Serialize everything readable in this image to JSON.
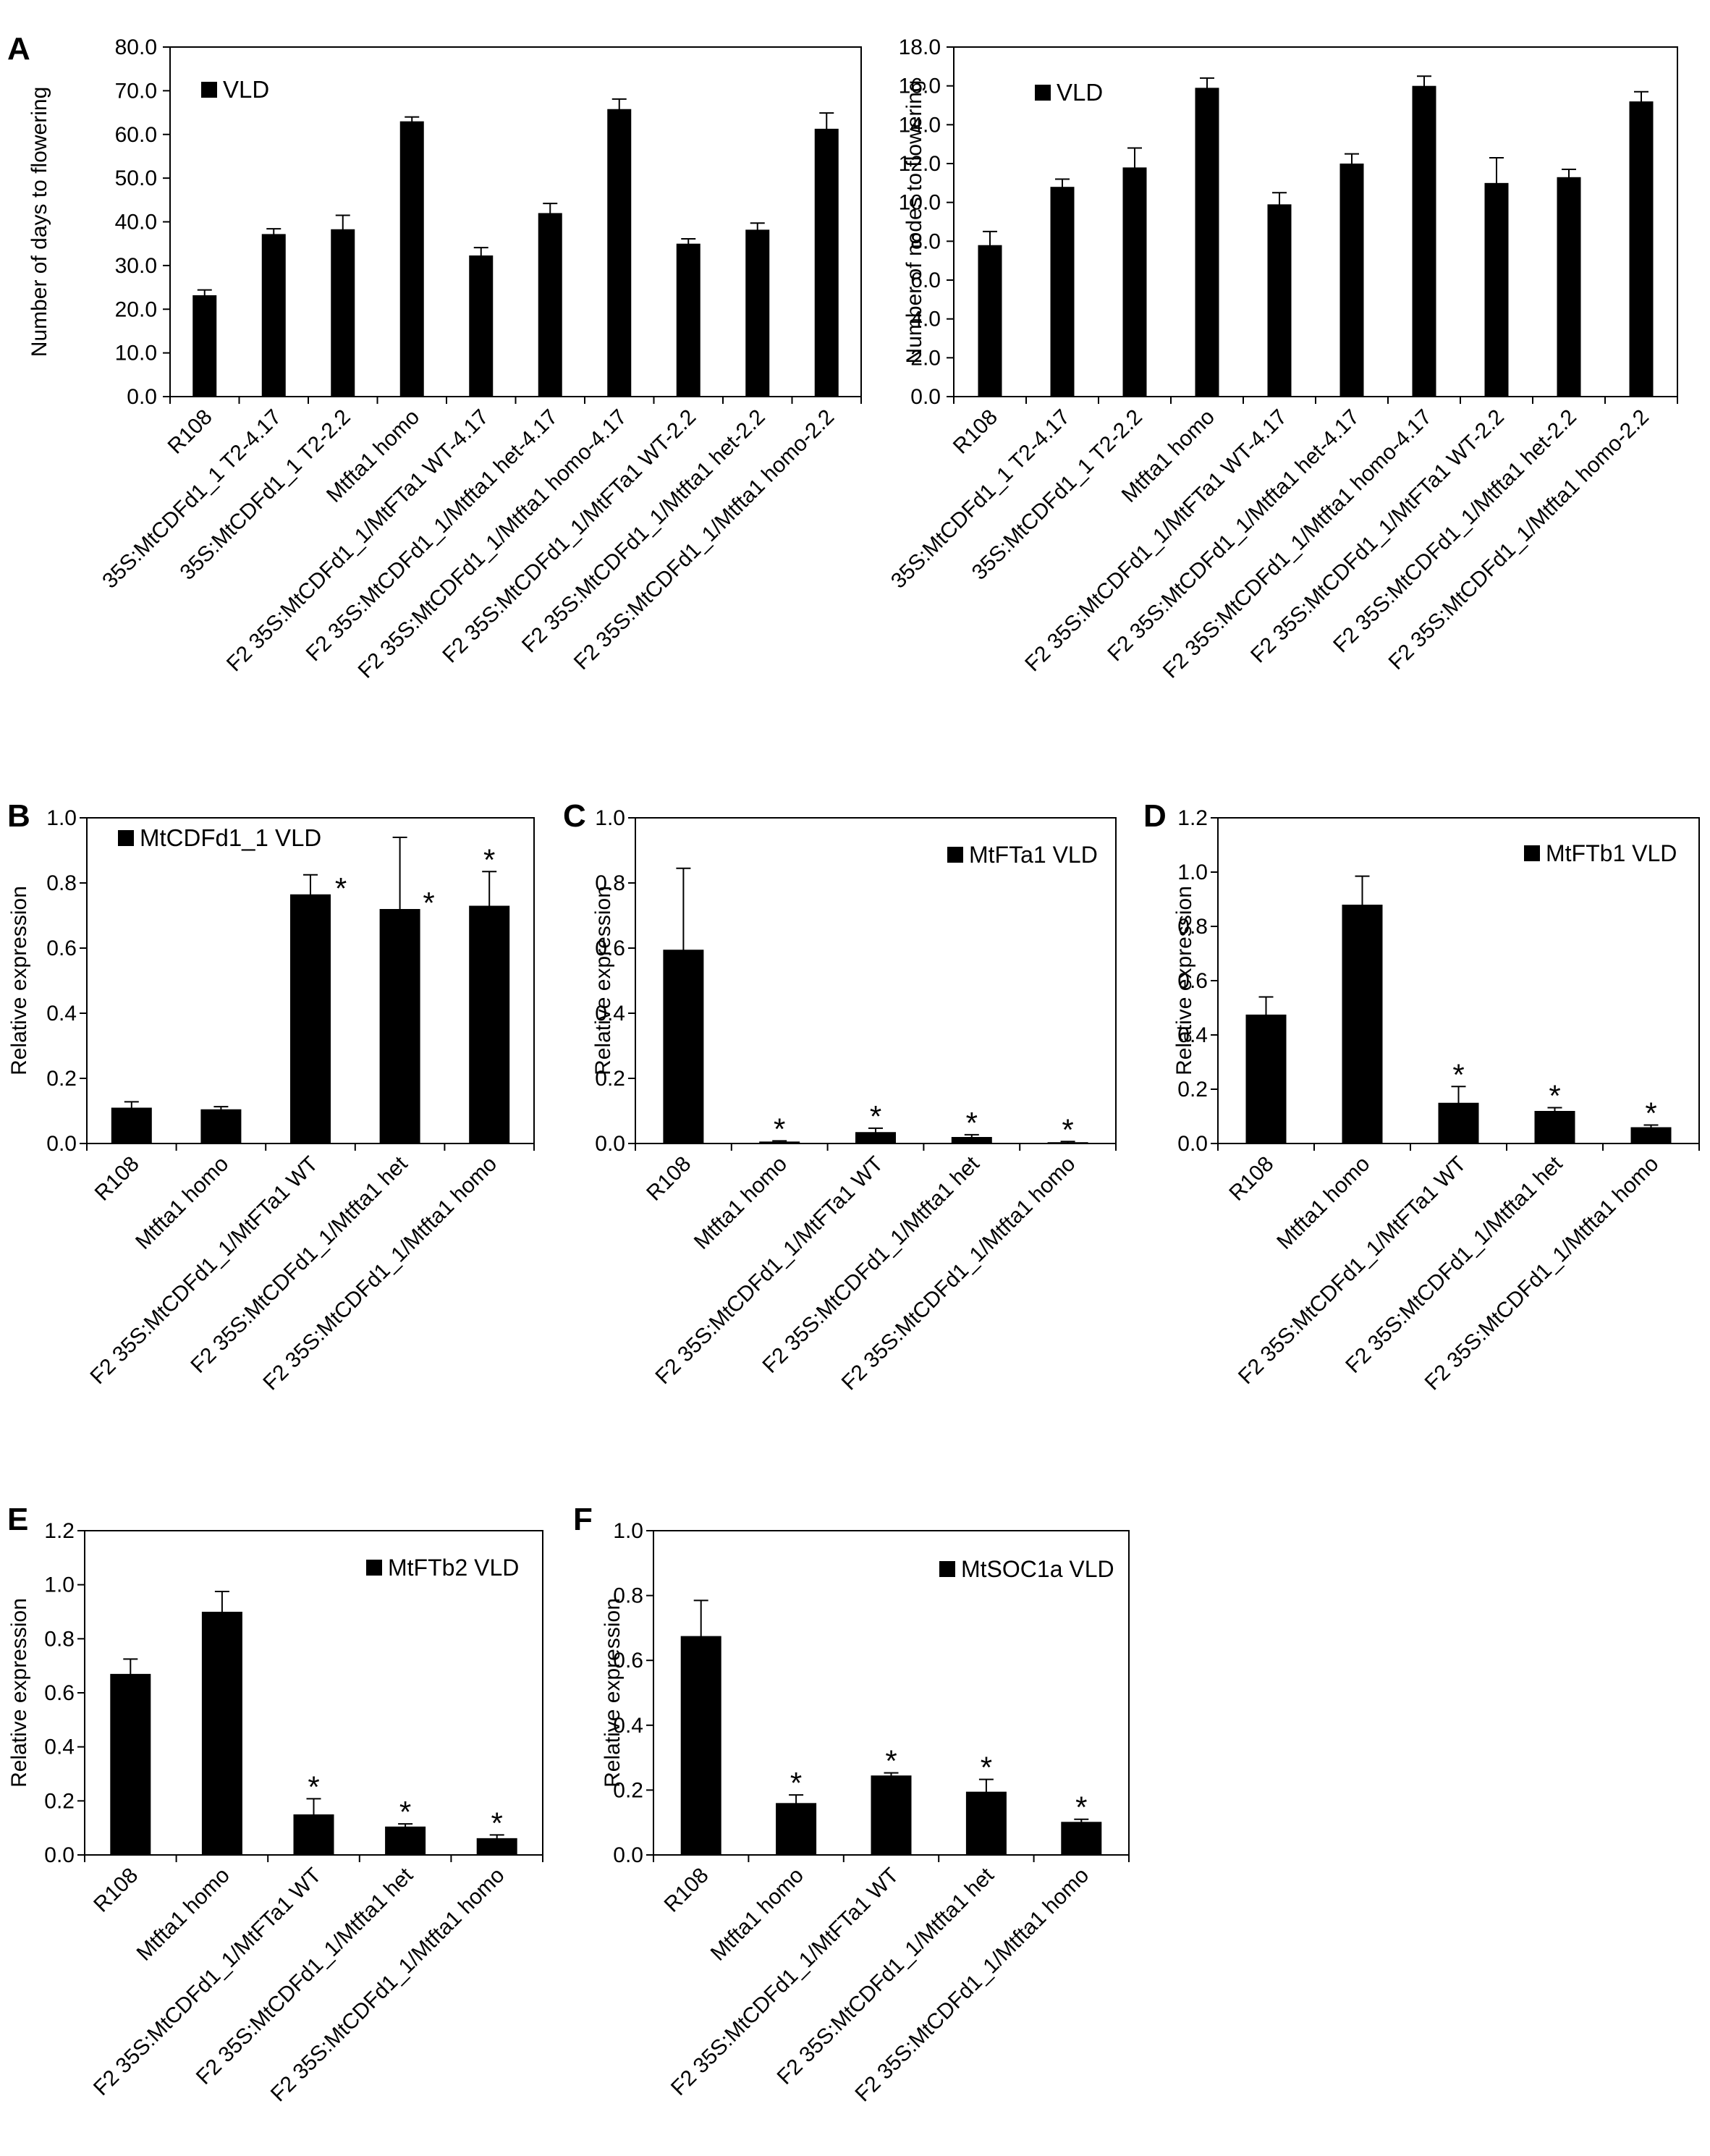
{
  "chart_data": [
    {
      "panel": "A",
      "type": "bar",
      "legend": "VLD",
      "title": "",
      "xlabel": "",
      "ylabel": "Number of days to flowering",
      "ylim": [
        0,
        80
      ],
      "ytick_step": 10,
      "ytick_decimals": 1,
      "categories": [
        "R108",
        "35S:MtCDFd1_1 T2-4.17",
        "35S:MtCDFd1_1 T2-2.2",
        "Mtfta1 homo",
        "F2 35S:MtCDFd1_1/MtFTa1 WT-4.17",
        "F2 35S:MtCDFd1_1/Mtfta1 het-4.17",
        "F2 35S:MtCDFd1_1/Mtfta1 homo-4.17",
        "F2 35S:MtCDFd1_1/MtFTa1 WT-2.2",
        "F2 35S:MtCDFd1_1/Mtfta1 het-2.2",
        "F2 35S:MtCDFd1_1/Mtfta1 homo-2.2"
      ],
      "values": [
        23.2,
        37.2,
        38.3,
        63.0,
        32.3,
        42.0,
        65.8,
        35.0,
        38.2,
        61.3
      ],
      "errors": [
        1.2,
        1.2,
        3.2,
        1.0,
        1.8,
        2.2,
        2.3,
        1.1,
        1.5,
        3.6
      ],
      "significant": [
        false,
        false,
        false,
        false,
        false,
        false,
        false,
        false,
        false,
        false
      ]
    },
    {
      "panel": "",
      "type": "bar",
      "legend": "VLD",
      "title": "",
      "xlabel": "",
      "ylabel": "Number of nodes to flowering",
      "ylim": [
        0,
        18
      ],
      "ytick_step": 2,
      "ytick_decimals": 1,
      "categories": [
        "R108",
        "35S:MtCDFd1_1 T2-4.17",
        "35S:MtCDFd1_1 T2-2.2",
        "Mtfta1 homo",
        "F2 35S:MtCDFd1_1/MtFTa1 WT-4.17",
        "F2 35S:MtCDFd1_1/Mtfta1 het-4.17",
        "F2 35S:MtCDFd1_1/Mtfta1 homo-4.17",
        "F2 35S:MtCDFd1_1/MtFTa1 WT-2.2",
        "F2 35S:MtCDFd1_1/Mtfta1 het-2.2",
        "F2 35S:MtCDFd1_1/Mtfta1 homo-2.2"
      ],
      "values": [
        7.8,
        10.8,
        11.8,
        15.9,
        9.9,
        12.0,
        16.0,
        11.0,
        11.3,
        15.2
      ],
      "errors": [
        0.7,
        0.4,
        1.0,
        0.5,
        0.6,
        0.5,
        0.5,
        1.3,
        0.4,
        0.5
      ],
      "significant": [
        false,
        false,
        false,
        false,
        false,
        false,
        false,
        false,
        false,
        false
      ]
    },
    {
      "panel": "B",
      "type": "bar",
      "legend": "MtCDFd1_1 VLD",
      "title": "",
      "xlabel": "",
      "ylabel": "Relative expression",
      "ylim": [
        0,
        1.0
      ],
      "ytick_step": 0.2,
      "ytick_decimals": 1,
      "categories": [
        "R108",
        "Mtfta1 homo",
        "F2 35S:MtCDFd1_1/MtFTa1 WT",
        "F2 35S:MtCDFd1_1/Mtfta1 het",
        "F2 35S:MtCDFd1_1/Mtfta1 homo"
      ],
      "values": [
        0.11,
        0.105,
        0.765,
        0.72,
        0.73
      ],
      "errors": [
        0.018,
        0.008,
        0.06,
        0.22,
        0.105
      ],
      "significant": [
        false,
        false,
        true,
        true,
        true
      ],
      "marker": "*"
    },
    {
      "panel": "C",
      "type": "bar",
      "legend": "MtFTa1 VLD",
      "title": "",
      "xlabel": "",
      "ylabel": "Relative expression",
      "ylim": [
        0,
        1.0
      ],
      "ytick_step": 0.2,
      "ytick_decimals": 1,
      "categories": [
        "R108",
        "Mtfta1 homo",
        "F2 35S:MtCDFd1_1/MtFTa1 WT",
        "F2 35S:MtCDFd1_1/Mtfta1 het",
        "F2 35S:MtCDFd1_1/Mtfta1 homo"
      ],
      "values": [
        0.595,
        0.006,
        0.035,
        0.02,
        0.004
      ],
      "errors": [
        0.25,
        0.002,
        0.012,
        0.007,
        0.002
      ],
      "significant": [
        false,
        true,
        true,
        true,
        true
      ],
      "marker": "*"
    },
    {
      "panel": "D",
      "type": "bar",
      "legend": "MtFTb1 VLD",
      "title": "",
      "xlabel": "",
      "ylabel": "Relative expression",
      "ylim": [
        0,
        1.2
      ],
      "ytick_step": 0.2,
      "ytick_decimals": 1,
      "categories": [
        "R108",
        "Mtfta1 homo",
        "F2 35S:MtCDFd1_1/MtFTa1 WT",
        "F2 35S:MtCDFd1_1/Mtfta1 het",
        "F2 35S:MtCDFd1_1/Mtfta1 homo"
      ],
      "values": [
        0.475,
        0.88,
        0.15,
        0.12,
        0.06
      ],
      "errors": [
        0.065,
        0.105,
        0.06,
        0.012,
        0.008
      ],
      "significant": [
        false,
        false,
        true,
        true,
        true
      ],
      "marker": "*"
    },
    {
      "panel": "E",
      "type": "bar",
      "legend": "MtFTb2 VLD",
      "title": "",
      "xlabel": "",
      "ylabel": "Relative expression",
      "ylim": [
        0,
        1.2
      ],
      "ytick_step": 0.2,
      "ytick_decimals": 1,
      "categories": [
        "R108",
        "Mtfta1 homo",
        "F2 35S:MtCDFd1_1/MtFTa1 WT",
        "F2 35S:MtCDFd1_1/Mtfta1 het",
        "F2 35S:MtCDFd1_1/Mtfta1 homo"
      ],
      "values": [
        0.67,
        0.9,
        0.15,
        0.105,
        0.062
      ],
      "errors": [
        0.055,
        0.075,
        0.058,
        0.01,
        0.012
      ],
      "significant": [
        false,
        false,
        true,
        true,
        true
      ],
      "marker": "*"
    },
    {
      "panel": "F",
      "type": "bar",
      "legend": "MtSOC1a VLD",
      "title": "",
      "xlabel": "",
      "ylabel": "Relative expression",
      "ylim": [
        0,
        1.0
      ],
      "ytick_step": 0.2,
      "ytick_decimals": 1,
      "categories": [
        "R108",
        "Mtfta1 homo",
        "F2 35S:MtCDFd1_1/MtFTa1 WT",
        "F2 35S:MtCDFd1_1/Mtfta1 het",
        "F2 35S:MtCDFd1_1/Mtfta1 homo"
      ],
      "values": [
        0.675,
        0.16,
        0.245,
        0.195,
        0.102
      ],
      "errors": [
        0.11,
        0.025,
        0.008,
        0.038,
        0.008
      ],
      "significant": [
        false,
        true,
        true,
        true,
        true
      ],
      "marker": "*"
    }
  ]
}
